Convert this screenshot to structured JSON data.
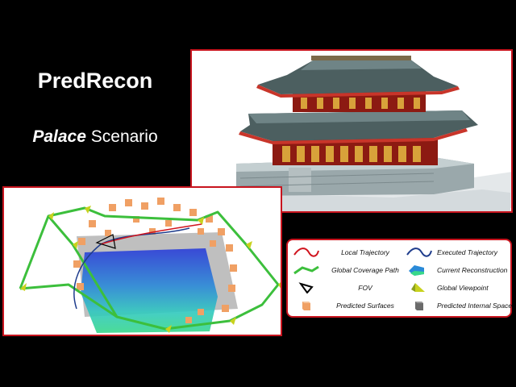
{
  "title": "PredRecon",
  "subtitle": {
    "emphasis": "Palace",
    "rest": " Scenario"
  },
  "colors": {
    "panel_border": "#c8141e",
    "local_trajectory": "#d0141e",
    "executed_trajectory": "#1e3c8c",
    "global_coverage_path": "#3cbf3c",
    "predicted_surfaces": "#f0a064",
    "global_viewpoint": "#c8d21e"
  },
  "legend": {
    "items": [
      {
        "label": "Local Trajectory",
        "icon": "red-curve-icon"
      },
      {
        "label": "Executed Trajectory",
        "icon": "blue-curve-icon"
      },
      {
        "label": "Global Coverage Path",
        "icon": "green-path-icon"
      },
      {
        "label": "Current Reconstruction",
        "icon": "reconstruction-icon"
      },
      {
        "label": "FOV",
        "icon": "fov-frustum-icon"
      },
      {
        "label": "Global Viewpoint",
        "icon": "viewpoint-icon"
      },
      {
        "label": "Predicted Surfaces",
        "icon": "orange-cube-icon"
      },
      {
        "label": "Predicted Internal Space",
        "icon": "gray-cube-icon"
      }
    ]
  }
}
